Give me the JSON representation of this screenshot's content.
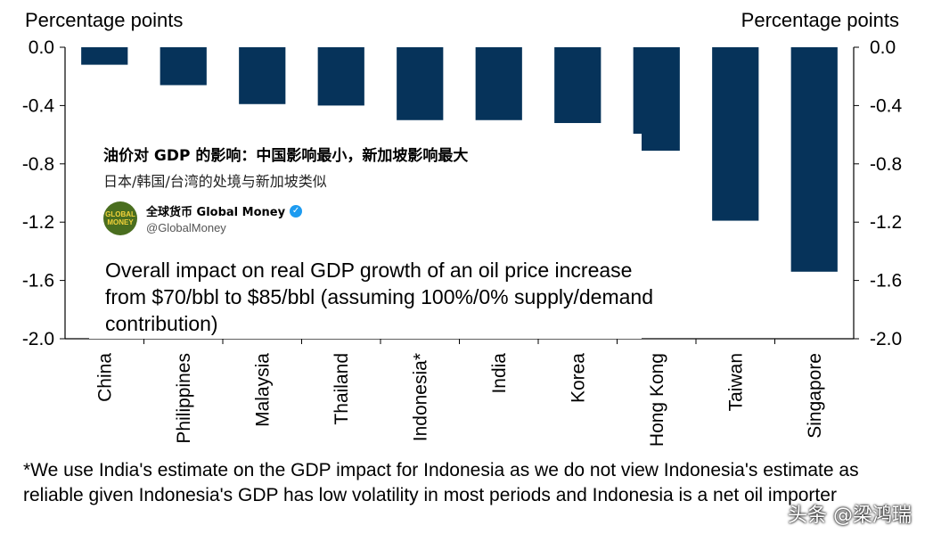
{
  "chart_data": {
    "type": "bar",
    "categories": [
      "China",
      "Philippines",
      "Malaysia",
      "Thailand",
      "Indonesia*",
      "India",
      "Korea",
      "Hong Kong",
      "Taiwan",
      "Singapore"
    ],
    "values": [
      -0.12,
      -0.26,
      -0.39,
      -0.4,
      -0.5,
      -0.5,
      -0.52,
      -0.71,
      -1.19,
      -1.54
    ],
    "ylim": [
      -2.0,
      0.0
    ],
    "yticks": [
      0.0,
      -0.4,
      -0.8,
      -1.2,
      -1.6,
      -2.0
    ],
    "ytick_labels": [
      "0.0",
      "-0.4",
      "-0.8",
      "-1.2",
      "-1.6",
      "-2.0"
    ],
    "ylabel_left": "Percentage points",
    "ylabel_right": "Percentage points",
    "title": "Overall impact on real GDP growth of an oil price increase from $70/bbl to $85/bbl (assuming 100%/0% supply/demand contribution)",
    "bar_color": "#06335a"
  },
  "post": {
    "title": "油价对 GDP 的影响：中国影响最小，新加坡影响最大",
    "subtitle": "日本/韩国/台湾的处境与新加坡类似",
    "avatar_text": "GLOBAL MONEY",
    "account_name": "全球货币 Global Money",
    "verified_icon": "✓",
    "handle": "@GlobalMoney"
  },
  "footnote": "*We use India's estimate on the GDP impact for Indonesia as we do not view Indonesia's estimate as reliable given Indonesia's GDP has low volatility in most periods and Indonesia is a net oil importer",
  "watermark": "头条 @梁鸿瑞"
}
